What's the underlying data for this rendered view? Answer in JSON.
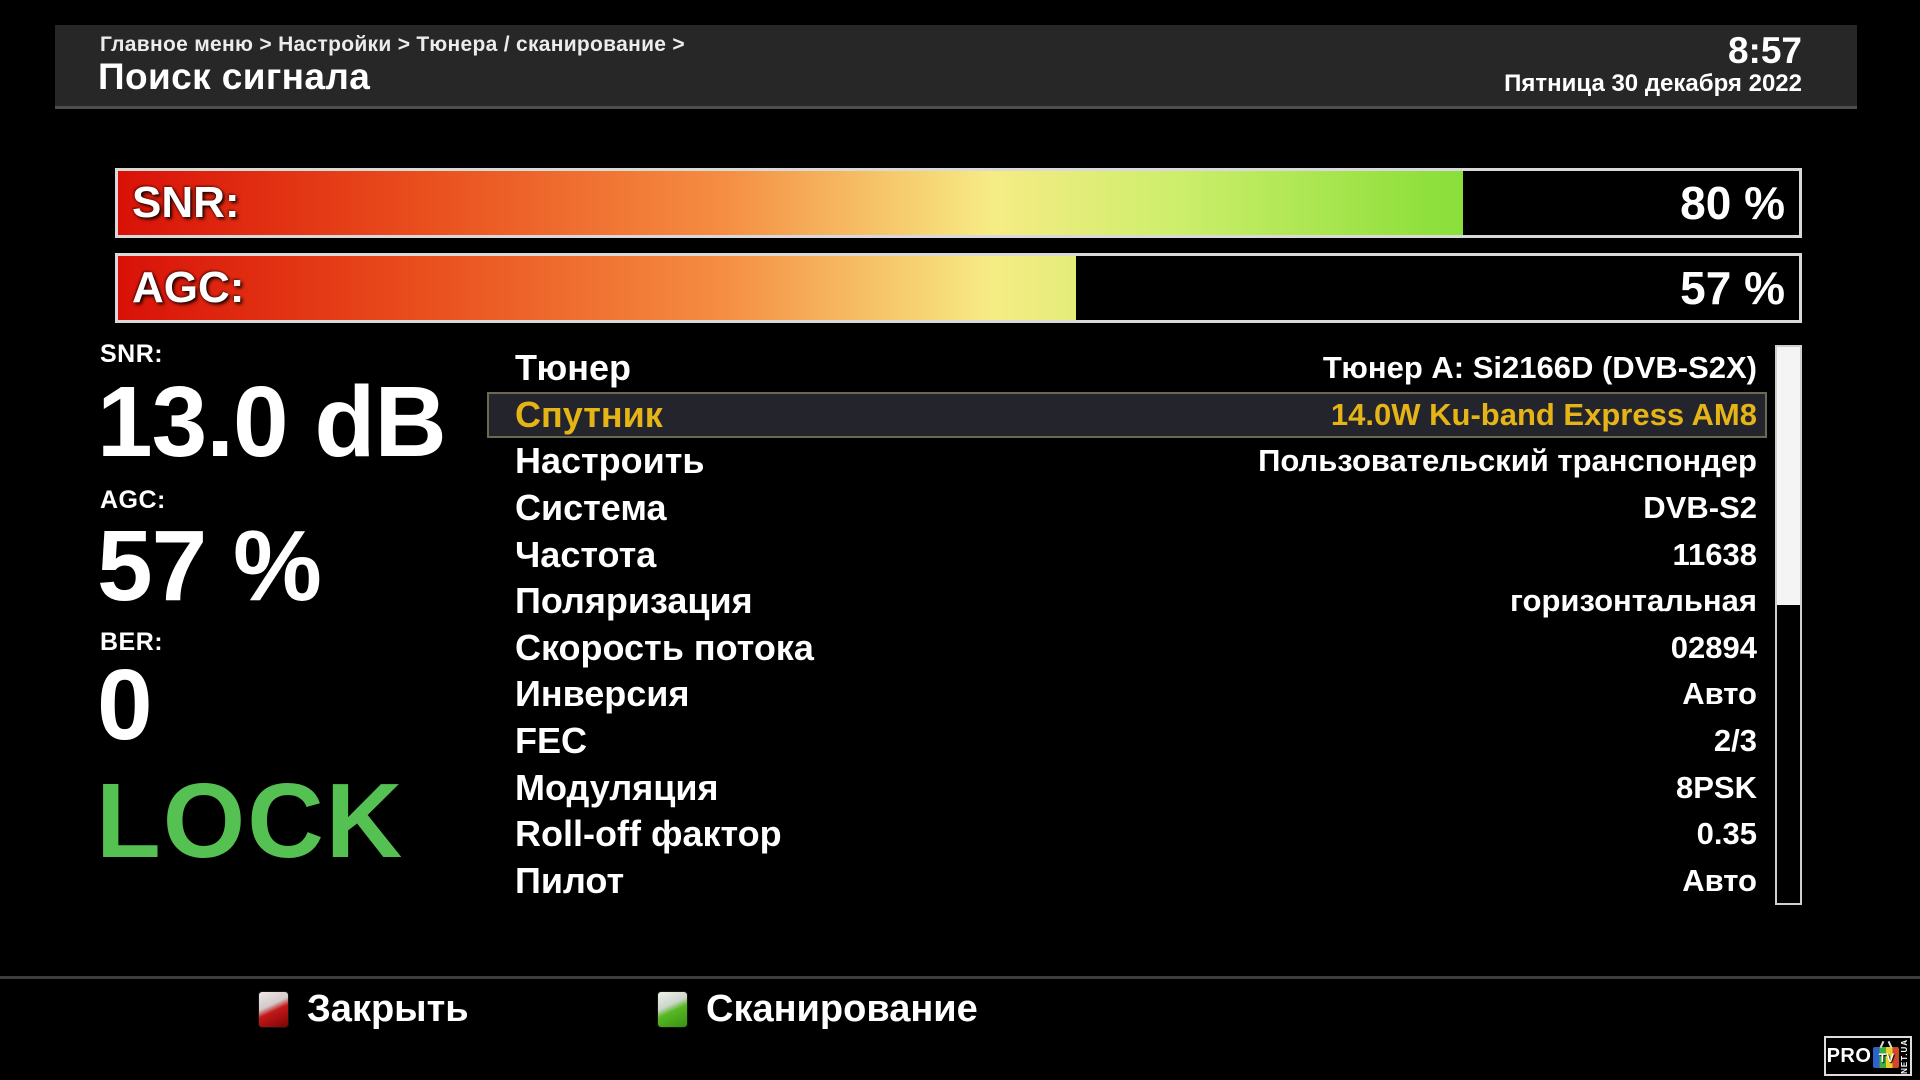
{
  "header": {
    "breadcrumb": "Главное меню > Настройки > Тюнера / сканирование >",
    "title": "Поиск сигнала",
    "time": "8:57",
    "date": "Пятница 30 декабря 2022"
  },
  "bars": [
    {
      "id": "snr",
      "label": "SNR:",
      "value": 80,
      "value_text": "80 %"
    },
    {
      "id": "agc",
      "label": "AGC:",
      "value": 57,
      "value_text": "57 %"
    }
  ],
  "stats": [
    {
      "label": "SNR:",
      "value": "13.0 dB"
    },
    {
      "label": "AGC:",
      "value": "57 %"
    },
    {
      "label": "BER:",
      "value": "0"
    }
  ],
  "lock_status": "LOCK",
  "menu": {
    "items": [
      {
        "label": "Тюнер",
        "value": "Тюнер A: Si2166D (DVB-S2X)",
        "selected": false
      },
      {
        "label": "Спутник",
        "value": "14.0W Ku-band Express AM8",
        "selected": true
      },
      {
        "label": "Настроить",
        "value": "Пользовательский транспондер",
        "selected": false
      },
      {
        "label": "Система",
        "value": "DVB-S2",
        "selected": false
      },
      {
        "label": "Частота",
        "value": "11638",
        "selected": false
      },
      {
        "label": "Поляризация",
        "value": "горизонтальная",
        "selected": false
      },
      {
        "label": "Скорость потока",
        "value": "02894",
        "selected": false
      },
      {
        "label": "Инверсия",
        "value": "Авто",
        "selected": false
      },
      {
        "label": "FEC",
        "value": "2/3",
        "selected": false
      },
      {
        "label": "Модуляция",
        "value": "8PSK",
        "selected": false
      },
      {
        "label": "Roll-off фактор",
        "value": "0.35",
        "selected": false
      },
      {
        "label": "Пилот",
        "value": "Авто",
        "selected": false
      }
    ]
  },
  "footer": {
    "close_label": "Закрыть",
    "scan_label": "Сканирование"
  },
  "logo": {
    "pro": "PRO",
    "tv": "TV",
    "suffix": "NET.UA"
  },
  "colors": {
    "accent_selected": "#e5b416",
    "lock_green": "#55c152",
    "gradient_start": "#d91108",
    "gradient_end": "#5fd726",
    "close_button": "#c31818",
    "scan_button": "#56b823",
    "header_bg": "#272727"
  }
}
